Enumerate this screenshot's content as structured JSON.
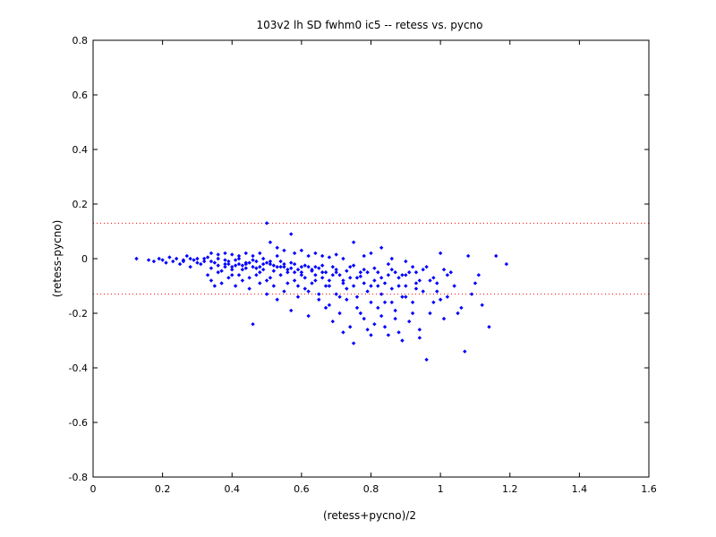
{
  "chart_data": {
    "type": "scatter",
    "title": "103v2 lh SD fwhm0 ic5 -- retess vs. pycno",
    "xlabel": "(retess+pycno)/2",
    "ylabel": "(retess-pycno)",
    "xlim": [
      0,
      1.6
    ],
    "ylim": [
      -0.8,
      0.8
    ],
    "xticks": [
      0,
      0.2,
      0.4,
      0.6,
      0.8,
      1,
      1.2,
      1.4,
      1.6
    ],
    "xtick_labels": [
      "0",
      "0.2",
      "0.4",
      "0.6",
      "0.8",
      "1",
      "1.2",
      "1.4",
      "1.6"
    ],
    "yticks": [
      -0.8,
      -0.6,
      -0.4,
      -0.2,
      0,
      0.2,
      0.4,
      0.6,
      0.8
    ],
    "ytick_labels": [
      "-0.8",
      "-0.6",
      "-0.4",
      "-0.2",
      "0",
      "0.2",
      "0.4",
      "0.6",
      "0.8"
    ],
    "reference_lines": [
      {
        "y": 0.13,
        "color": "#ff0000",
        "style": "dotted"
      },
      {
        "y": -0.13,
        "color": "#ff0000",
        "style": "dotted"
      }
    ],
    "marker_color": "#0000ff",
    "grid": false,
    "points": [
      [
        0.125,
        0.0
      ],
      [
        0.16,
        -0.005
      ],
      [
        0.175,
        -0.01
      ],
      [
        0.19,
        0.0
      ],
      [
        0.2,
        -0.005
      ],
      [
        0.21,
        -0.015
      ],
      [
        0.22,
        0.005
      ],
      [
        0.23,
        -0.01
      ],
      [
        0.24,
        0.0
      ],
      [
        0.25,
        -0.02
      ],
      [
        0.26,
        -0.005
      ],
      [
        0.27,
        0.01
      ],
      [
        0.28,
        -0.03
      ],
      [
        0.29,
        -0.005
      ],
      [
        0.3,
        0.0
      ],
      [
        0.31,
        -0.02
      ],
      [
        0.32,
        -0.01
      ],
      [
        0.33,
        0.005
      ],
      [
        0.34,
        -0.035
      ],
      [
        0.35,
        -0.015
      ],
      [
        0.36,
        0.0
      ],
      [
        0.37,
        -0.045
      ],
      [
        0.38,
        -0.02
      ],
      [
        0.39,
        -0.01
      ],
      [
        0.4,
        -0.06
      ],
      [
        0.41,
        -0.025
      ],
      [
        0.42,
        0.0
      ],
      [
        0.43,
        -0.04
      ],
      [
        0.44,
        -0.015
      ],
      [
        0.45,
        -0.07
      ],
      [
        0.46,
        -0.03
      ],
      [
        0.47,
        -0.01
      ],
      [
        0.48,
        -0.05
      ],
      [
        0.49,
        0.0
      ],
      [
        0.5,
        -0.08
      ],
      [
        0.51,
        -0.02
      ],
      [
        0.52,
        -0.045
      ],
      [
        0.53,
        0.01
      ],
      [
        0.54,
        -0.06
      ],
      [
        0.55,
        -0.03
      ],
      [
        0.56,
        -0.09
      ],
      [
        0.57,
        -0.015
      ],
      [
        0.58,
        -0.05
      ],
      [
        0.59,
        -0.1
      ],
      [
        0.6,
        -0.03
      ],
      [
        0.61,
        -0.07
      ],
      [
        0.62,
        -0.12
      ],
      [
        0.63,
        -0.04
      ],
      [
        0.64,
        -0.08
      ],
      [
        0.65,
        -0.15
      ],
      [
        0.66,
        -0.05
      ],
      [
        0.67,
        -0.1
      ],
      [
        0.68,
        -0.17
      ],
      [
        0.69,
        -0.06
      ],
      [
        0.7,
        -0.13
      ],
      [
        0.71,
        -0.2
      ],
      [
        0.72,
        -0.08
      ],
      [
        0.73,
        -0.15
      ],
      [
        0.74,
        -0.25
      ],
      [
        0.75,
        -0.1
      ],
      [
        0.76,
        -0.18
      ],
      [
        0.77,
        -0.05
      ],
      [
        0.78,
        -0.22
      ],
      [
        0.79,
        -0.12
      ],
      [
        0.8,
        -0.28
      ],
      [
        0.81,
        -0.08
      ],
      [
        0.82,
        -0.18
      ],
      [
        0.83,
        -0.13
      ],
      [
        0.84,
        -0.25
      ],
      [
        0.85,
        -0.06
      ],
      [
        0.86,
        -0.16
      ],
      [
        0.87,
        -0.22
      ],
      [
        0.88,
        -0.1
      ],
      [
        0.89,
        -0.3
      ],
      [
        0.9,
        -0.14
      ],
      [
        0.91,
        -0.05
      ],
      [
        0.92,
        -0.2
      ],
      [
        0.93,
        -0.11
      ],
      [
        0.94,
        -0.26
      ],
      [
        0.95,
        -0.04
      ],
      [
        0.96,
        -0.37
      ],
      [
        0.97,
        -0.08
      ],
      [
        0.98,
        -0.16
      ],
      [
        0.99,
        -0.12
      ],
      [
        1.0,
        0.02
      ],
      [
        1.01,
        -0.22
      ],
      [
        1.02,
        -0.06
      ],
      [
        1.04,
        -0.1
      ],
      [
        1.06,
        -0.18
      ],
      [
        1.07,
        -0.34
      ],
      [
        1.08,
        0.01
      ],
      [
        1.1,
        -0.09
      ],
      [
        1.12,
        -0.17
      ],
      [
        1.14,
        -0.25
      ],
      [
        1.16,
        0.01
      ],
      [
        1.19,
        -0.02
      ],
      [
        0.34,
        0.02
      ],
      [
        0.36,
        0.015
      ],
      [
        0.38,
        0.02
      ],
      [
        0.4,
        0.015
      ],
      [
        0.42,
        0.01
      ],
      [
        0.44,
        0.02
      ],
      [
        0.46,
        0.01
      ],
      [
        0.48,
        0.02
      ],
      [
        0.5,
        0.13
      ],
      [
        0.51,
        0.06
      ],
      [
        0.53,
        0.04
      ],
      [
        0.55,
        0.03
      ],
      [
        0.57,
        0.09
      ],
      [
        0.58,
        0.02
      ],
      [
        0.6,
        0.03
      ],
      [
        0.62,
        0.01
      ],
      [
        0.64,
        0.02
      ],
      [
        0.66,
        0.01
      ],
      [
        0.68,
        0.005
      ],
      [
        0.7,
        0.015
      ],
      [
        0.72,
        0.0
      ],
      [
        0.75,
        0.06
      ],
      [
        0.78,
        0.01
      ],
      [
        0.8,
        0.02
      ],
      [
        0.83,
        0.04
      ],
      [
        0.86,
        0.0
      ],
      [
        0.9,
        -0.01
      ],
      [
        0.33,
        -0.06
      ],
      [
        0.34,
        -0.08
      ],
      [
        0.35,
        -0.1
      ],
      [
        0.36,
        -0.05
      ],
      [
        0.37,
        -0.09
      ],
      [
        0.38,
        -0.03
      ],
      [
        0.39,
        -0.07
      ],
      [
        0.4,
        -0.04
      ],
      [
        0.41,
        -0.1
      ],
      [
        0.42,
        -0.06
      ],
      [
        0.43,
        -0.08
      ],
      [
        0.44,
        -0.02
      ],
      [
        0.45,
        -0.11
      ],
      [
        0.46,
        -0.24
      ],
      [
        0.47,
        -0.06
      ],
      [
        0.48,
        -0.09
      ],
      [
        0.49,
        -0.04
      ],
      [
        0.5,
        -0.13
      ],
      [
        0.51,
        -0.07
      ],
      [
        0.52,
        -0.1
      ],
      [
        0.53,
        -0.15
      ],
      [
        0.54,
        -0.03
      ],
      [
        0.55,
        -0.12
      ],
      [
        0.56,
        -0.05
      ],
      [
        0.57,
        -0.19
      ],
      [
        0.58,
        -0.08
      ],
      [
        0.59,
        -0.14
      ],
      [
        0.6,
        -0.06
      ],
      [
        0.61,
        -0.11
      ],
      [
        0.62,
        -0.21
      ],
      [
        0.63,
        -0.09
      ],
      [
        0.64,
        -0.03
      ],
      [
        0.65,
        -0.13
      ],
      [
        0.66,
        -0.07
      ],
      [
        0.67,
        -0.18
      ],
      [
        0.68,
        -0.1
      ],
      [
        0.69,
        -0.23
      ],
      [
        0.7,
        -0.05
      ],
      [
        0.71,
        -0.14
      ],
      [
        0.72,
        -0.27
      ],
      [
        0.73,
        -0.11
      ],
      [
        0.74,
        -0.07
      ],
      [
        0.75,
        -0.31
      ],
      [
        0.76,
        -0.14
      ],
      [
        0.77,
        -0.2
      ],
      [
        0.78,
        -0.09
      ],
      [
        0.79,
        -0.26
      ],
      [
        0.8,
        -0.16
      ],
      [
        0.81,
        -0.24
      ],
      [
        0.82,
        -0.1
      ],
      [
        0.83,
        -0.21
      ],
      [
        0.84,
        -0.16
      ],
      [
        0.85,
        -0.28
      ],
      [
        0.86,
        -0.11
      ],
      [
        0.87,
        -0.19
      ],
      [
        0.88,
        -0.27
      ],
      [
        0.89,
        -0.14
      ],
      [
        0.9,
        -0.06
      ],
      [
        0.91,
        -0.23
      ],
      [
        0.92,
        -0.16
      ],
      [
        0.93,
        -0.09
      ],
      [
        0.94,
        -0.29
      ],
      [
        0.95,
        -0.12
      ],
      [
        0.97,
        -0.2
      ],
      [
        0.98,
        -0.07
      ],
      [
        1.0,
        -0.15
      ],
      [
        1.02,
        -0.14
      ],
      [
        1.03,
        -0.05
      ],
      [
        1.05,
        -0.2
      ],
      [
        1.09,
        -0.13
      ],
      [
        1.11,
        -0.06
      ],
      [
        0.26,
        -0.01
      ],
      [
        0.28,
        0.0
      ],
      [
        0.3,
        -0.015
      ],
      [
        0.32,
        0.0
      ],
      [
        0.34,
        -0.01
      ],
      [
        0.36,
        -0.025
      ],
      [
        0.38,
        -0.005
      ],
      [
        0.4,
        -0.03
      ],
      [
        0.42,
        -0.02
      ],
      [
        0.44,
        -0.035
      ],
      [
        0.46,
        -0.005
      ],
      [
        0.48,
        -0.03
      ],
      [
        0.5,
        -0.015
      ],
      [
        0.52,
        -0.025
      ],
      [
        0.54,
        -0.01
      ],
      [
        0.56,
        -0.04
      ],
      [
        0.58,
        -0.02
      ],
      [
        0.6,
        -0.05
      ],
      [
        0.62,
        -0.03
      ],
      [
        0.64,
        -0.06
      ],
      [
        0.66,
        -0.025
      ],
      [
        0.68,
        -0.08
      ],
      [
        0.7,
        -0.04
      ],
      [
        0.72,
        -0.09
      ],
      [
        0.74,
        -0.03
      ],
      [
        0.76,
        -0.07
      ],
      [
        0.78,
        -0.04
      ],
      [
        0.8,
        -0.1
      ],
      [
        0.82,
        -0.05
      ],
      [
        0.84,
        -0.09
      ],
      [
        0.86,
        -0.04
      ],
      [
        0.88,
        -0.07
      ],
      [
        0.9,
        -0.1
      ],
      [
        0.92,
        -0.03
      ],
      [
        0.94,
        -0.08
      ],
      [
        0.39,
        -0.02
      ],
      [
        0.41,
        -0.005
      ],
      [
        0.43,
        -0.025
      ],
      [
        0.45,
        -0.015
      ],
      [
        0.47,
        -0.035
      ],
      [
        0.49,
        -0.02
      ],
      [
        0.51,
        -0.01
      ],
      [
        0.53,
        -0.03
      ],
      [
        0.55,
        -0.02
      ],
      [
        0.57,
        -0.035
      ],
      [
        0.59,
        -0.04
      ],
      [
        0.61,
        -0.025
      ],
      [
        0.63,
        -0.045
      ],
      [
        0.65,
        -0.035
      ],
      [
        0.67,
        -0.05
      ],
      [
        0.69,
        -0.03
      ],
      [
        0.71,
        -0.06
      ],
      [
        0.73,
        -0.045
      ],
      [
        0.75,
        -0.025
      ],
      [
        0.77,
        -0.065
      ],
      [
        0.79,
        -0.05
      ],
      [
        0.81,
        -0.035
      ],
      [
        0.83,
        -0.07
      ],
      [
        0.85,
        -0.02
      ],
      [
        0.87,
        -0.05
      ],
      [
        0.89,
        -0.06
      ],
      [
        0.93,
        -0.05
      ],
      [
        0.96,
        -0.03
      ],
      [
        0.99,
        -0.09
      ],
      [
        1.01,
        -0.04
      ]
    ]
  }
}
